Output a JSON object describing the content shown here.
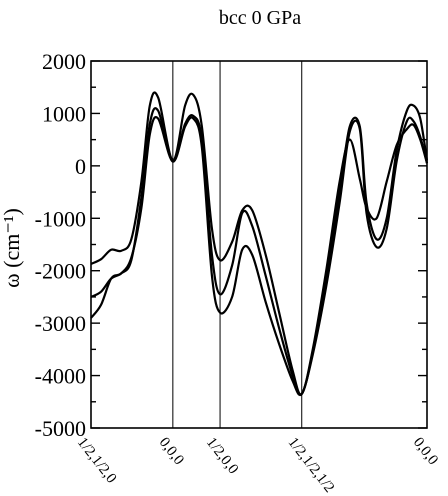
{
  "chart_data": {
    "type": "line",
    "title": "bcc 0 GPa",
    "ylabel": "ω (cm⁻¹)",
    "ylim": [
      -5000,
      2000
    ],
    "yticks": [
      2000,
      1000,
      0,
      -1000,
      -2000,
      -3000,
      -4000,
      -5000
    ],
    "ytick_labels": [
      "2000",
      "1000",
      "0",
      "-1000",
      "-2000",
      "-3000",
      "-4000",
      "-5000"
    ],
    "xlim": [
      0,
      1
    ],
    "x_special_points": [
      {
        "label": "1/2,1/2,0",
        "x": 0.0
      },
      {
        "label": "0,0,0",
        "x": 0.2436
      },
      {
        "label": "1/2,0,0",
        "x": 0.3841
      },
      {
        "label": "1/2,1/2,1/2",
        "x": 0.6272
      },
      {
        "label": "0,0,0",
        "x": 1.0
      }
    ],
    "grid": false,
    "series": [
      {
        "x": [
          0,
          0.03,
          0.06,
          0.09,
          0.12,
          0.15,
          0.175,
          0.2,
          0.2436,
          0.28,
          0.305,
          0.33,
          0.36,
          0.3841,
          0.42,
          0.45,
          0.48,
          0.52,
          0.56,
          0.6,
          0.6272,
          0.66,
          0.7,
          0.74,
          0.77,
          0.8,
          0.82,
          0.85,
          0.88,
          0.91,
          0.94,
          0.96,
          0.98,
          1.0
        ],
        "y": [
          -1870,
          -1780,
          -1600,
          -1620,
          -1400,
          -300,
          1150,
          1300,
          100,
          1150,
          1350,
          750,
          -1200,
          -1800,
          -1450,
          -850,
          -850,
          -1700,
          -2800,
          -3900,
          -4350,
          -3500,
          -2000,
          -300,
          500,
          -250,
          -800,
          -1000,
          -300,
          400,
          700,
          780,
          500,
          50
        ]
      },
      {
        "x": [
          0,
          0.03,
          0.06,
          0.09,
          0.12,
          0.15,
          0.175,
          0.2,
          0.2436,
          0.28,
          0.305,
          0.33,
          0.36,
          0.3841,
          0.42,
          0.45,
          0.48,
          0.52,
          0.56,
          0.6,
          0.6272,
          0.66,
          0.7,
          0.74,
          0.77,
          0.8,
          0.82,
          0.85,
          0.88,
          0.91,
          0.94,
          0.96,
          0.98,
          1.0
        ],
        "y": [
          -2500,
          -2400,
          -2150,
          -2050,
          -1800,
          -600,
          800,
          1050,
          100,
          800,
          950,
          500,
          -1700,
          -2450,
          -1900,
          -900,
          -1150,
          -2100,
          -3100,
          -4000,
          -4350,
          -3550,
          -2100,
          -500,
          750,
          750,
          -700,
          -1400,
          -1000,
          300,
          1050,
          1150,
          900,
          100
        ]
      },
      {
        "x": [
          0,
          0.03,
          0.06,
          0.09,
          0.12,
          0.15,
          0.175,
          0.2,
          0.2436,
          0.28,
          0.305,
          0.33,
          0.36,
          0.3841,
          0.42,
          0.45,
          0.48,
          0.52,
          0.56,
          0.6,
          0.6272,
          0.66,
          0.7,
          0.74,
          0.77,
          0.8,
          0.82,
          0.85,
          0.88,
          0.91,
          0.94,
          0.96,
          0.98,
          1.0
        ],
        "y": [
          -2900,
          -2650,
          -2150,
          -2050,
          -1750,
          -800,
          600,
          900,
          80,
          750,
          900,
          350,
          -2100,
          -2800,
          -2500,
          -1600,
          -1700,
          -2600,
          -3400,
          -4100,
          -4350,
          -3600,
          -2300,
          -700,
          650,
          700,
          -900,
          -1550,
          -1200,
          100,
          850,
          850,
          550,
          50
        ]
      }
    ]
  }
}
